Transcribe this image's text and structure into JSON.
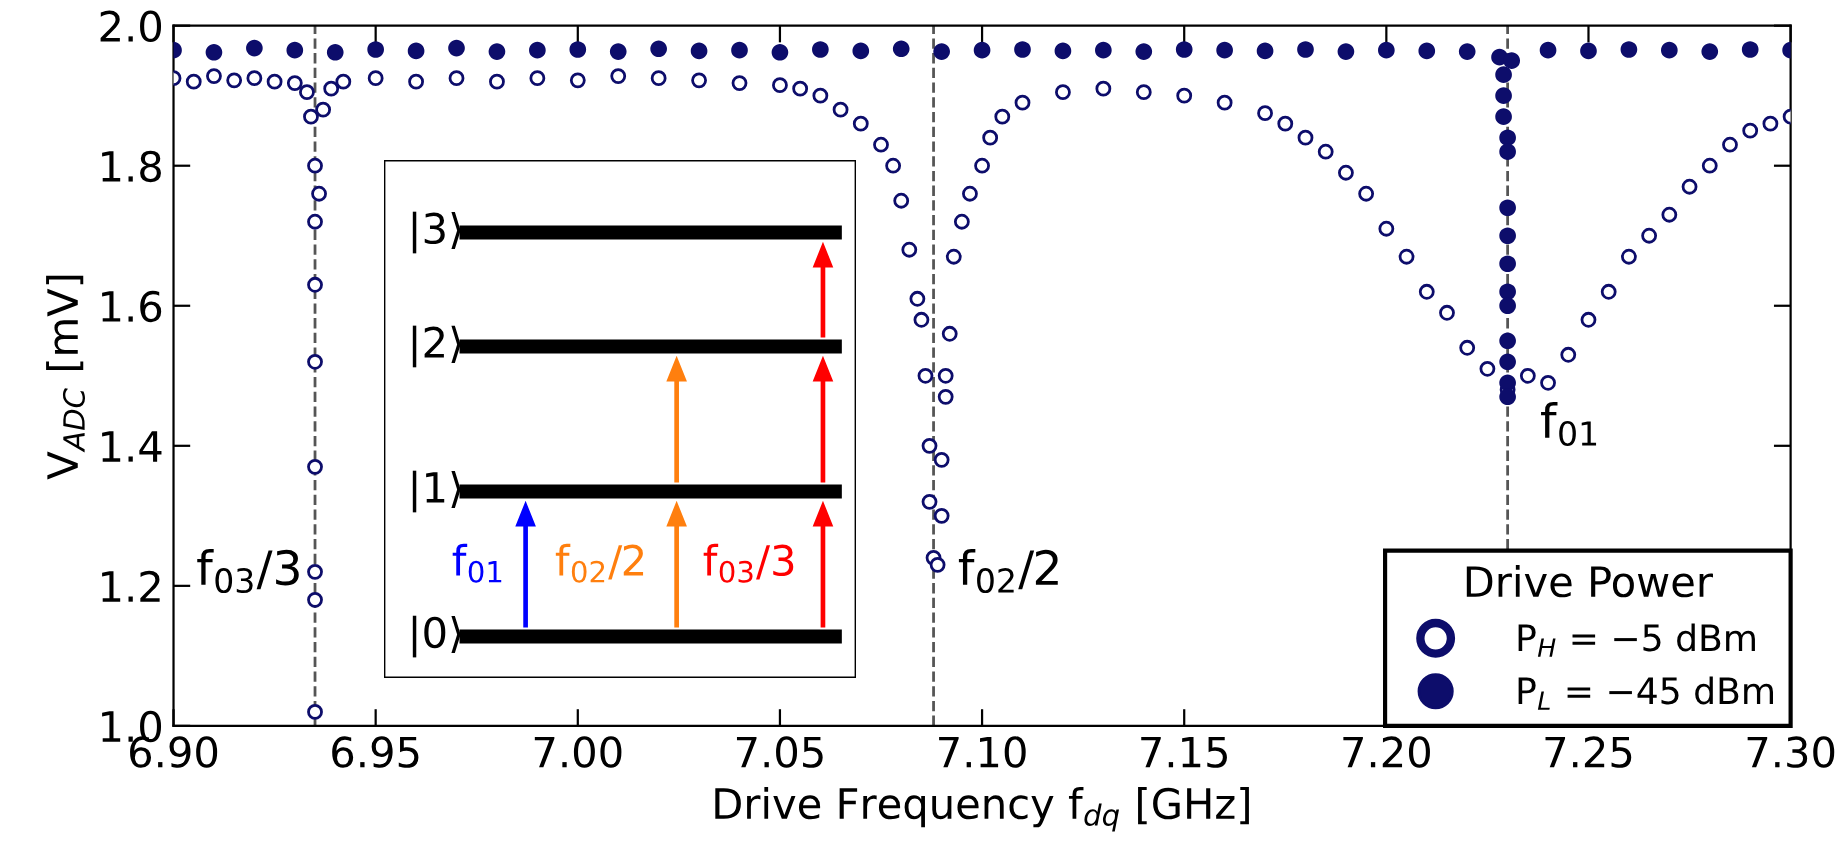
{
  "chart_data": {
    "type": "scatter",
    "xlabel": "Drive Frequency f$_{dq}$ [GHz]",
    "ylabel": "V$_{ADC}$ [mV]",
    "legend_title": "Drive Power",
    "legend": "bottom right",
    "grid": false,
    "xlim": [
      6.9,
      7.3
    ],
    "ylim": [
      1.0,
      2.0
    ],
    "xticks": [
      {
        "value": 6.9,
        "label": "6.90"
      },
      {
        "value": 6.95,
        "label": "6.95"
      },
      {
        "value": 7.0,
        "label": "7.00"
      },
      {
        "value": 7.05,
        "label": "7.05"
      },
      {
        "value": 7.1,
        "label": "7.10"
      },
      {
        "value": 7.15,
        "label": "7.15"
      },
      {
        "value": 7.2,
        "label": "7.20"
      },
      {
        "value": 7.25,
        "label": "7.25"
      },
      {
        "value": 7.3,
        "label": "7.30"
      }
    ],
    "yticks": [
      {
        "value": 1.0,
        "label": "1.0"
      },
      1.2,
      1.4,
      1.6,
      1.8,
      {
        "value": 2.0,
        "label": "2.0"
      }
    ],
    "ref_lines": [
      {
        "axis": "x",
        "value": 6.935,
        "label": "f$_{03}$/3",
        "line_style": "dashed"
      },
      {
        "axis": "x",
        "value": 7.088,
        "label": "f$_{02}$/2",
        "line_style": "dashed"
      },
      {
        "axis": "x",
        "value": 7.23,
        "label": "f$_{01}$",
        "line_style": "dashed"
      }
    ],
    "annotations": [
      "|0⟩",
      "|1⟩",
      "|2⟩",
      "|3⟩",
      "f$_{01}$",
      "f$_{02}$/2",
      "f$_{03}$/3"
    ],
    "series": [
      {
        "name": "P$_{H}$ = −5 dBm",
        "color": "#0d0d6b",
        "marker": "circle",
        "x": [
          6.9,
          6.905,
          6.91,
          6.915,
          6.92,
          6.925,
          6.93,
          6.933,
          6.934,
          6.935,
          6.935,
          6.935,
          6.935,
          6.935,
          6.935,
          6.935,
          6.935,
          6.936,
          6.937,
          6.939,
          6.942,
          6.95,
          6.96,
          6.97,
          6.98,
          6.99,
          7.0,
          7.01,
          7.02,
          7.03,
          7.04,
          7.05,
          7.055,
          7.06,
          7.065,
          7.07,
          7.075,
          7.078,
          7.08,
          7.082,
          7.084,
          7.085,
          7.086,
          7.087,
          7.087,
          7.088,
          7.089,
          7.09,
          7.09,
          7.091,
          7.091,
          7.092,
          7.093,
          7.095,
          7.097,
          7.1,
          7.102,
          7.105,
          7.11,
          7.12,
          7.13,
          7.14,
          7.15,
          7.16,
          7.17,
          7.175,
          7.18,
          7.185,
          7.19,
          7.195,
          7.2,
          7.205,
          7.21,
          7.215,
          7.22,
          7.225,
          7.23,
          7.235,
          7.24,
          7.245,
          7.25,
          7.255,
          7.26,
          7.265,
          7.27,
          7.275,
          7.28,
          7.285,
          7.29,
          7.295,
          7.3
        ],
        "values": [
          1.925,
          1.92,
          1.928,
          1.922,
          1.925,
          1.92,
          1.918,
          1.905,
          1.87,
          1.8,
          1.72,
          1.63,
          1.52,
          1.37,
          1.22,
          1.18,
          1.02,
          1.76,
          1.88,
          1.91,
          1.92,
          1.925,
          1.92,
          1.925,
          1.92,
          1.925,
          1.922,
          1.928,
          1.925,
          1.922,
          1.918,
          1.915,
          1.91,
          1.9,
          1.88,
          1.86,
          1.83,
          1.8,
          1.75,
          1.68,
          1.61,
          1.58,
          1.5,
          1.4,
          1.32,
          1.24,
          1.23,
          1.3,
          1.38,
          1.47,
          1.5,
          1.56,
          1.67,
          1.72,
          1.76,
          1.8,
          1.84,
          1.87,
          1.89,
          1.905,
          1.91,
          1.905,
          1.9,
          1.89,
          1.875,
          1.86,
          1.84,
          1.82,
          1.79,
          1.76,
          1.71,
          1.67,
          1.62,
          1.59,
          1.54,
          1.51,
          1.48,
          1.5,
          1.49,
          1.53,
          1.58,
          1.62,
          1.67,
          1.7,
          1.73,
          1.77,
          1.8,
          1.83,
          1.85,
          1.86,
          1.87
        ]
      },
      {
        "name": "P$_{L}$ = −45 dBm",
        "color": "#0d0d6b",
        "marker": "circle",
        "x": [
          6.9,
          6.91,
          6.92,
          6.93,
          6.94,
          6.95,
          6.96,
          6.97,
          6.98,
          6.99,
          7.0,
          7.01,
          7.02,
          7.03,
          7.04,
          7.05,
          7.06,
          7.07,
          7.08,
          7.09,
          7.1,
          7.11,
          7.12,
          7.13,
          7.14,
          7.15,
          7.16,
          7.17,
          7.18,
          7.19,
          7.2,
          7.21,
          7.22,
          7.228,
          7.229,
          7.229,
          7.229,
          7.23,
          7.23,
          7.23,
          7.23,
          7.23,
          7.23,
          7.23,
          7.23,
          7.23,
          7.23,
          7.23,
          7.231,
          7.24,
          7.25,
          7.26,
          7.27,
          7.28,
          7.29,
          7.3
        ],
        "values": [
          1.965,
          1.962,
          1.968,
          1.965,
          1.962,
          1.966,
          1.964,
          1.968,
          1.963,
          1.965,
          1.966,
          1.963,
          1.967,
          1.964,
          1.965,
          1.962,
          1.966,
          1.964,
          1.967,
          1.963,
          1.965,
          1.966,
          1.964,
          1.965,
          1.963,
          1.966,
          1.965,
          1.964,
          1.966,
          1.963,
          1.965,
          1.964,
          1.963,
          1.955,
          1.93,
          1.9,
          1.87,
          1.84,
          1.82,
          1.74,
          1.7,
          1.66,
          1.62,
          1.6,
          1.55,
          1.52,
          1.49,
          1.47,
          1.95,
          1.965,
          1.964,
          1.966,
          1.965,
          1.963,
          1.966,
          1.965
        ]
      }
    ]
  }
}
